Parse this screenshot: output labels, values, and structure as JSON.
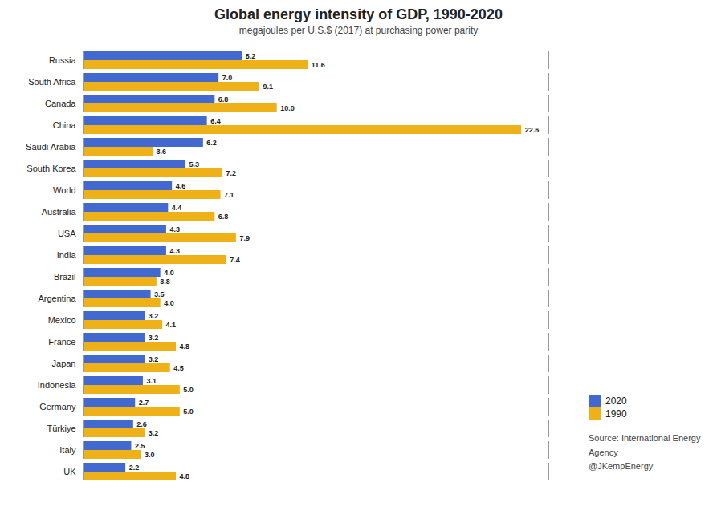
{
  "chart_data": {
    "type": "bar",
    "orientation": "horizontal",
    "title": "Global energy intensity of  GDP, 1990-2020",
    "subtitle": "megajoules per U.S.$ (2017) at purchasing power parity",
    "categories": [
      "Russia",
      "South Africa",
      "Canada",
      "China",
      "Saudi Arabia",
      "South Korea",
      "World",
      "Australia",
      "USA",
      "India",
      "Brazil",
      "Argentina",
      "Mexico",
      "France",
      "Japan",
      "Indonesia",
      "Germany",
      "Türkiye",
      "Italy",
      "UK"
    ],
    "series": [
      {
        "name": "2020",
        "values": [
          8.2,
          7.0,
          6.8,
          6.4,
          6.2,
          5.3,
          4.6,
          4.4,
          4.3,
          4.3,
          4.0,
          3.5,
          3.2,
          3.2,
          3.2,
          3.1,
          2.7,
          2.6,
          2.5,
          2.2
        ],
        "value_labels": [
          "8.2",
          "7.0",
          "6.8",
          "6.4",
          "6.2",
          "5.3",
          "4.6",
          "4.4",
          "4.3",
          "4.3",
          "4.0",
          "3.5",
          "3.2",
          "3.2",
          "3.2",
          "3.1",
          "2.7",
          "2.6",
          "2.5",
          "2.2"
        ]
      },
      {
        "name": "1990",
        "values": [
          11.6,
          9.1,
          10.0,
          22.6,
          3.6,
          7.2,
          7.1,
          6.8,
          7.9,
          7.4,
          3.8,
          4.0,
          4.1,
          4.8,
          4.5,
          5.0,
          5.0,
          3.2,
          3.0,
          4.8
        ],
        "value_labels": [
          "11.6",
          "9.1",
          "10.0",
          "22.6",
          "3.6",
          "7.2",
          "7.1",
          "6.8",
          "7.9",
          "7.4",
          "3.8",
          "4.0",
          "4.1",
          "4.8",
          "4.5",
          "5.0",
          "5.0",
          "3.2",
          "3.0",
          "4.8"
        ]
      }
    ],
    "xlim": [
      0,
      24
    ],
    "tick_labels": "y",
    "data_labels": true,
    "legend": "right",
    "annotations": [
      "Source: International Energy Agency\n@JKempEnergy"
    ]
  }
}
